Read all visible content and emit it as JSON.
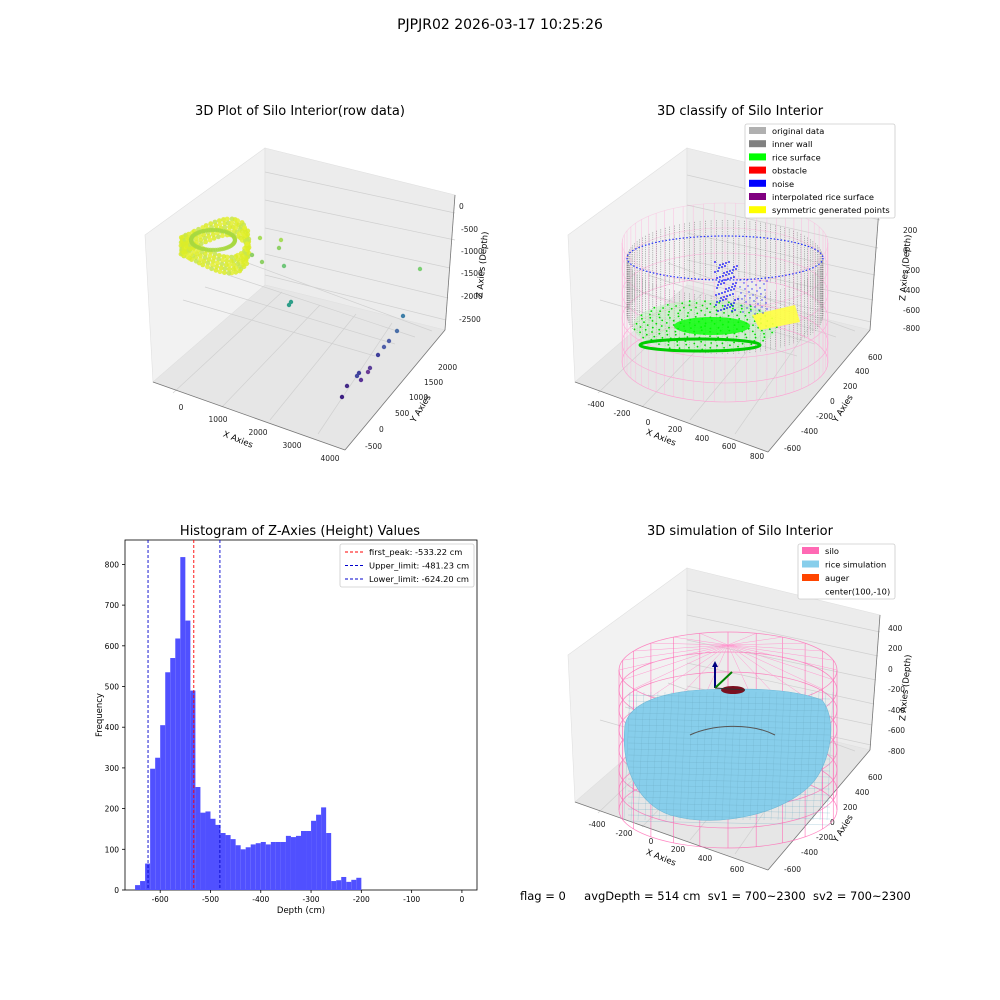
{
  "figure_title": "PJPJR02 2026-03-17 10:25:26",
  "footer": {
    "flag": "flag = 0",
    "avg_depth": "avgDepth = 514 cm",
    "sv1": "sv1 = 700~2300",
    "sv2": "sv2 = 700~2300"
  },
  "colors": {
    "histogram_bar": "#5050ff",
    "first_peak_line": "#ff0000",
    "limit_lines": "#0000cc",
    "silo_wire": "#ff69b4",
    "rice_simulation": "#87ceeb",
    "auger": "#ff4500",
    "inner_wall": "#808080",
    "rice_surface": "#00ff00",
    "noise": "#0000ff",
    "symmetric_points": "#ffff00"
  },
  "chart_data": [
    {
      "type": "scatter",
      "title": "3D Plot of Silo Interior(row data)",
      "xlabel": "X Axies",
      "ylabel": "Y Axies",
      "zlabel": "Z Axies (Depth)",
      "x_ticks": [
        "0",
        "1000",
        "2000",
        "3000",
        "4000"
      ],
      "y_ticks": [
        "-500",
        "0",
        "500",
        "1000",
        "1500",
        "2000"
      ],
      "z_ticks": [
        "0",
        "-500",
        "-1000",
        "-1500",
        "-2000",
        "-2500"
      ]
    },
    {
      "type": "scatter",
      "title": "3D classify of Silo Interior",
      "xlabel": "X Axies",
      "ylabel": "Y Axies",
      "zlabel": "Z Axies (Depth)",
      "x_ticks": [
        "-400",
        "-200",
        "0",
        "200",
        "400",
        "600",
        "800"
      ],
      "y_ticks": [
        "-600",
        "-400",
        "-200",
        "0",
        "200",
        "400",
        "600"
      ],
      "z_ticks": [
        "200",
        "0",
        "-200",
        "-400",
        "-600",
        "-800"
      ],
      "legend": [
        {
          "label": "original data",
          "color": "#b0b0b0"
        },
        {
          "label": "inner wall",
          "color": "#808080"
        },
        {
          "label": "rice surface",
          "color": "#00ff00"
        },
        {
          "label": "obstacle",
          "color": "#ff0000"
        },
        {
          "label": "noise",
          "color": "#0000ff"
        },
        {
          "label": "interpolated rice surface",
          "color": "#800080"
        },
        {
          "label": "symmetric generated points",
          "color": "#ffff00"
        }
      ]
    },
    {
      "type": "bar",
      "title": "Histogram of Z-Axies (Height) Values",
      "xlabel": "Depth (cm)",
      "ylabel": "Frequency",
      "xlim": [
        -670,
        30
      ],
      "ylim": [
        0,
        860
      ],
      "x_ticks": [
        -600,
        -500,
        -400,
        -300,
        -200,
        -100,
        0
      ],
      "y_ticks": [
        0,
        100,
        200,
        300,
        400,
        500,
        600,
        700,
        800
      ],
      "bin_start": -650,
      "bin_width": 10,
      "values": [
        12,
        22,
        65,
        298,
        325,
        405,
        535,
        570,
        618,
        818,
        662,
        490,
        253,
        190,
        193,
        175,
        160,
        140,
        135,
        125,
        110,
        100,
        105,
        112,
        115,
        118,
        112,
        118,
        118,
        118,
        133,
        130,
        133,
        145,
        145,
        170,
        185,
        203,
        140,
        22,
        24,
        32,
        20,
        25,
        30
      ],
      "vlines": [
        {
          "label": "first_peak: -533.22 cm",
          "x": -533.22,
          "style": "red"
        },
        {
          "label": "Upper_limit: -481.23 cm",
          "x": -481.23,
          "style": "blue"
        },
        {
          "label": "Lower_limit: -624.20 cm",
          "x": -624.2,
          "style": "blue"
        }
      ]
    },
    {
      "type": "scatter",
      "title": "3D simulation of Silo Interior",
      "xlabel": "X Axies",
      "ylabel": "Y Axies",
      "zlabel": "Z Axies (Depth)",
      "x_ticks": [
        "-400",
        "-200",
        "0",
        "200",
        "400",
        "600"
      ],
      "y_ticks": [
        "-600",
        "-400",
        "-200",
        "0",
        "200",
        "400",
        "600"
      ],
      "z_ticks": [
        "400",
        "200",
        "0",
        "-200",
        "-400",
        "-600",
        "-800"
      ],
      "legend": [
        {
          "label": "silo",
          "color": "#ff69b4"
        },
        {
          "label": "rice simulation",
          "color": "#87ceeb"
        },
        {
          "label": "auger",
          "color": "#ff4500"
        },
        {
          "label": "center(100,-10)",
          "color": ""
        }
      ]
    }
  ]
}
